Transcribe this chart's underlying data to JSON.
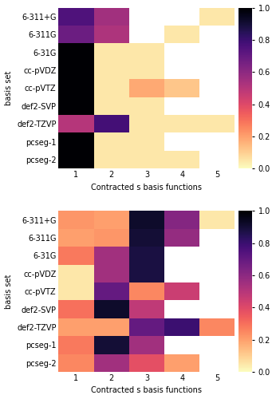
{
  "basis_sets": [
    "6-311+G",
    "6-311G",
    "6-31G",
    "cc-pVDZ",
    "cc-pVTZ",
    "def2-SVP",
    "def2-TZVP",
    "pcseg-1",
    "pcseg-2"
  ],
  "x_labels": [
    "1",
    "2",
    "3",
    "4",
    "5"
  ],
  "top_data": [
    [
      0.75,
      0.55,
      null,
      null,
      0.05
    ],
    [
      0.68,
      0.52,
      null,
      0.05,
      null
    ],
    [
      1.0,
      0.05,
      0.05,
      null,
      null
    ],
    [
      1.0,
      0.05,
      0.05,
      null,
      null
    ],
    [
      1.0,
      0.05,
      0.18,
      0.12,
      null
    ],
    [
      1.0,
      0.05,
      0.05,
      null,
      null
    ],
    [
      0.5,
      0.78,
      0.05,
      0.05,
      0.05
    ],
    [
      1.0,
      0.05,
      0.05,
      null,
      null
    ],
    [
      1.0,
      0.05,
      0.05,
      0.05,
      null
    ]
  ],
  "bottom_data": [
    [
      0.22,
      0.2,
      0.92,
      0.62,
      0.05
    ],
    [
      0.2,
      0.22,
      0.9,
      0.58,
      null
    ],
    [
      0.28,
      0.55,
      0.88,
      null,
      null
    ],
    [
      0.05,
      0.55,
      0.88,
      null,
      null
    ],
    [
      0.05,
      0.7,
      0.25,
      0.45,
      null
    ],
    [
      0.3,
      0.92,
      0.48,
      null,
      null
    ],
    [
      0.2,
      0.2,
      0.7,
      0.8,
      0.25
    ],
    [
      0.28,
      0.9,
      0.55,
      null,
      null
    ],
    [
      0.25,
      0.55,
      0.38,
      0.2,
      null
    ]
  ],
  "colormap": "magma_r",
  "xlabel": "Contracted s basis functions",
  "ylabel": "basis set",
  "colorbar_ticks": [
    0.0,
    0.2,
    0.4,
    0.6,
    0.8,
    1.0
  ],
  "vmin": 0.0,
  "vmax": 1.0
}
